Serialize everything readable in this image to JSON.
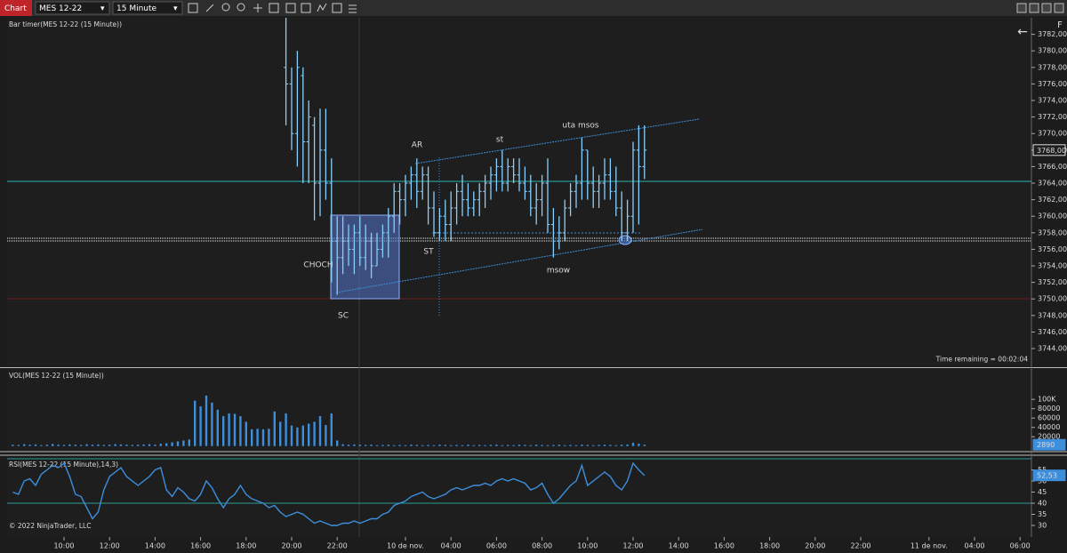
{
  "toolbar": {
    "title": "Chart",
    "instrument": "MES 12-22",
    "interval": "15 Minute",
    "flag": "F"
  },
  "chart_data": [
    {
      "type": "ohlc",
      "title": "Bar timer(MES 12-22 (15 Minute))",
      "time_remaining": "Time remaining = 00:02:04",
      "color": "#87cefa",
      "annotations": [
        "AR",
        "st",
        "uta msos",
        "ST",
        "msow",
        "CHOCH",
        "SC"
      ],
      "x": [
        49,
        50,
        51,
        52,
        53,
        54,
        55,
        56,
        57,
        58,
        59,
        60,
        61,
        62,
        63,
        64,
        65,
        66,
        67,
        68,
        69,
        70,
        71,
        72,
        73,
        74,
        75,
        76,
        77,
        78,
        79,
        80,
        81,
        82,
        83,
        84,
        85,
        86,
        87,
        88,
        89,
        90,
        91,
        92,
        93,
        94,
        95,
        96,
        97,
        98,
        99,
        100,
        101,
        102,
        103,
        104,
        105,
        106,
        107,
        108,
        109,
        110,
        111,
        112
      ],
      "open": [
        3778,
        3776,
        3770,
        3777,
        3769,
        3771,
        3764,
        3768,
        3764,
        3757,
        3755,
        3757,
        3756,
        3758,
        3755,
        3757,
        3754,
        3756,
        3758,
        3760,
        3763,
        3762,
        3764,
        3765,
        3763,
        3765,
        3761,
        3758,
        3760,
        3759,
        3761,
        3763,
        3762,
        3761,
        3762,
        3763,
        3764,
        3765,
        3766,
        3764,
        3766,
        3765,
        3764,
        3763,
        3761,
        3762,
        3764,
        3759,
        3757,
        3758,
        3761,
        3763,
        3764,
        3768,
        3764,
        3763,
        3764,
        3765,
        3763,
        3761,
        3758,
        3760,
        3768,
        3766
      ],
      "high": [
        3784,
        3778,
        3780,
        3778,
        3774,
        3772,
        3773,
        3773,
        3767,
        3760,
        3760,
        3759,
        3759,
        3760,
        3759,
        3758,
        3758,
        3759,
        3761,
        3764,
        3764,
        3765,
        3766,
        3767,
        3766,
        3766,
        3763,
        3761,
        3762,
        3763,
        3764,
        3765,
        3764,
        3763,
        3764,
        3765,
        3766,
        3767,
        3768,
        3767,
        3767,
        3767,
        3766,
        3765,
        3764,
        3765,
        3767,
        3761,
        3760,
        3762,
        3764,
        3765,
        3769.5,
        3768,
        3766,
        3765,
        3767,
        3767,
        3766,
        3763,
        3762,
        3769,
        3771,
        3771
      ],
      "low": [
        3771,
        3768,
        3766,
        3764,
        3764,
        3759.5,
        3760,
        3762,
        3752,
        3750.5,
        3753,
        3754,
        3753,
        3754,
        3753.5,
        3752.5,
        3754,
        3755,
        3755,
        3758,
        3759,
        3760,
        3762,
        3761,
        3762,
        3759,
        3757.5,
        3757,
        3757,
        3757,
        3759,
        3760,
        3760,
        3760,
        3760,
        3761,
        3762,
        3763,
        3763,
        3763,
        3764,
        3763,
        3762,
        3760,
        3759,
        3760,
        3758,
        3755,
        3756,
        3757,
        3760,
        3761,
        3762,
        3762,
        3761,
        3761,
        3762,
        3762,
        3760,
        3757,
        3757,
        3758,
        3759,
        3764.5
      ],
      "close": [
        3776,
        3770,
        3778,
        3769,
        3772,
        3764,
        3768,
        3764,
        3757,
        3755,
        3757,
        3756,
        3758,
        3755,
        3757,
        3754,
        3756,
        3758,
        3760,
        3763,
        3762,
        3764,
        3765,
        3763,
        3765,
        3761,
        3758,
        3760,
        3759,
        3761,
        3763,
        3762,
        3761,
        3762,
        3763,
        3764,
        3765,
        3766,
        3764,
        3766,
        3765,
        3764,
        3763,
        3761,
        3762,
        3764,
        3759,
        3757,
        3758,
        3761,
        3763,
        3764,
        3768,
        3764,
        3763,
        3764,
        3765,
        3763,
        3761,
        3758,
        3760,
        3768,
        3766,
        3768
      ],
      "last": {
        "value": 3768,
        "label": "3768,00"
      },
      "xlim": [
        0,
        180
      ],
      "ylim": [
        3741.8,
        3784
      ],
      "yticks": [
        {
          "value": 3744,
          "label": "3744,00"
        },
        {
          "value": 3746,
          "label": "3746,00"
        },
        {
          "value": 3748,
          "label": "3748,00"
        },
        {
          "value": 3750,
          "label": "3750,00"
        },
        {
          "value": 3752,
          "label": "3752,00"
        },
        {
          "value": 3754,
          "label": "3754,00"
        },
        {
          "value": 3756,
          "label": "3756,00"
        },
        {
          "value": 3758,
          "label": "3758,00"
        },
        {
          "value": 3760,
          "label": "3760,00"
        },
        {
          "value": 3762,
          "label": "3762,00"
        },
        {
          "value": 3764,
          "label": "3764,00"
        },
        {
          "value": 3766,
          "label": "3766,00"
        },
        {
          "value": 3768,
          "label": "3768,00"
        },
        {
          "value": 3770,
          "label": "3770,00"
        },
        {
          "value": 3772,
          "label": "3772,00"
        },
        {
          "value": 3774,
          "label": "3774,00"
        },
        {
          "value": 3776,
          "label": "3776,00"
        },
        {
          "value": 3778,
          "label": "3778,00"
        },
        {
          "value": 3780,
          "label": "3780,00"
        },
        {
          "value": 3782,
          "label": "3782,00"
        }
      ]
    },
    {
      "type": "bar",
      "title": "VOL(MES 12-22 (15 Minute))",
      "color": "#3d8fdc",
      "x": [
        1,
        2,
        3,
        4,
        5,
        6,
        7,
        8,
        9,
        10,
        11,
        12,
        13,
        14,
        15,
        16,
        17,
        18,
        19,
        20,
        21,
        22,
        23,
        24,
        25,
        26,
        27,
        28,
        29,
        30,
        31,
        32,
        33,
        34,
        35,
        36,
        37,
        38,
        39,
        40,
        41,
        42,
        43,
        44,
        45,
        46,
        47,
        48,
        49,
        50,
        51,
        52,
        53,
        54,
        55,
        56,
        57,
        58,
        59,
        60,
        61,
        62,
        63,
        64,
        65,
        66,
        67,
        68,
        69,
        70,
        71,
        72,
        73,
        74,
        75,
        76,
        77,
        78,
        79,
        80,
        81,
        82,
        83,
        84,
        85,
        86,
        87,
        88,
        89,
        90,
        91,
        92,
        93,
        94,
        95,
        96,
        97,
        98,
        99,
        100,
        101,
        102,
        103,
        104,
        105,
        106,
        107,
        108,
        109,
        110,
        111,
        112
      ],
      "values": [
        3000,
        2500,
        4000,
        3000,
        3500,
        2000,
        3000,
        4500,
        3000,
        2500,
        3500,
        3000,
        2500,
        4000,
        3000,
        3500,
        2500,
        3000,
        4000,
        3500,
        3000,
        2500,
        3000,
        3500,
        4000,
        3000,
        5000,
        6000,
        8000,
        10000,
        12000,
        14000,
        97000,
        85000,
        108000,
        93000,
        78000,
        64000,
        70000,
        69000,
        64000,
        52000,
        36000,
        37000,
        36000,
        37000,
        74000,
        52000,
        70000,
        44000,
        40000,
        44000,
        48000,
        52000,
        64000,
        45000,
        70000,
        12000,
        4000,
        3000,
        3500,
        3000,
        2500,
        3000,
        2000,
        2500,
        3000,
        2000,
        2500,
        2000,
        3000,
        2500,
        2000,
        2500,
        2000,
        3000,
        2500,
        2000,
        2500,
        2000,
        3000,
        2000,
        2500,
        2000,
        2500,
        3000,
        2000,
        2500,
        2000,
        3000,
        2500,
        2000,
        3000,
        2500,
        2000,
        2500,
        3000,
        2000,
        2500,
        2000,
        3000,
        2500,
        2000,
        2500,
        3000,
        2500,
        2000,
        3000,
        3500,
        7000,
        5000,
        2890
      ],
      "last": 2890,
      "xlim": [
        0,
        180
      ],
      "ylim": [
        -10000,
        165000
      ],
      "yticks": [
        20000,
        40000,
        60000,
        80000,
        {
          "value": 100000,
          "label": "100K"
        }
      ]
    },
    {
      "type": "line",
      "title": "RSI(MES 12-22 (15 Minute),14,3)",
      "copyright": "© 2022 NinjaTrader, LLC",
      "color": "#3d8fdc",
      "hline_color": "#2a9d96",
      "x": [
        1,
        2,
        3,
        4,
        5,
        6,
        7,
        8,
        9,
        10,
        11,
        12,
        13,
        14,
        15,
        16,
        17,
        18,
        19,
        20,
        21,
        22,
        23,
        24,
        25,
        26,
        27,
        28,
        29,
        30,
        31,
        32,
        33,
        34,
        35,
        36,
        37,
        38,
        39,
        40,
        41,
        42,
        43,
        44,
        45,
        46,
        47,
        48,
        49,
        50,
        51,
        52,
        53,
        54,
        55,
        56,
        57,
        58,
        59,
        60,
        61,
        62,
        63,
        64,
        65,
        66,
        67,
        68,
        69,
        70,
        71,
        72,
        73,
        74,
        75,
        76,
        77,
        78,
        79,
        80,
        81,
        82,
        83,
        84,
        85,
        86,
        87,
        88,
        89,
        90,
        91,
        92,
        93,
        94,
        95,
        96,
        97,
        98,
        99,
        100,
        101,
        102,
        103,
        104,
        105,
        106,
        107,
        108,
        109,
        110,
        111,
        112
      ],
      "values": [
        45,
        44,
        50,
        51,
        48,
        53,
        55,
        57,
        56,
        58,
        52,
        44,
        43,
        38,
        33,
        36,
        46,
        52,
        54,
        56,
        52,
        50,
        48,
        50,
        52,
        55,
        56,
        46,
        43,
        47,
        45,
        42,
        41,
        44,
        50,
        47,
        42,
        38,
        42,
        44,
        48,
        44,
        42,
        41,
        40,
        38,
        39,
        36,
        34,
        35,
        36,
        35,
        33,
        31,
        32,
        31,
        30,
        30,
        31,
        31,
        32,
        31,
        32,
        33,
        33,
        35,
        36,
        39,
        40,
        41,
        43,
        44,
        45,
        43,
        42,
        43,
        44,
        46,
        47,
        46,
        47,
        48,
        48,
        49,
        48,
        50,
        51,
        50,
        51,
        50,
        49,
        46,
        47,
        49,
        44,
        40,
        42,
        45,
        48,
        50,
        57,
        48,
        50,
        52,
        54,
        52,
        48,
        46,
        50,
        58,
        55,
        52.53
      ],
      "last": {
        "value": 52.53,
        "label": "52,53"
      },
      "hlines": [
        40,
        60
      ],
      "xlim": [
        0,
        180
      ],
      "ylim": [
        24.8,
        60.4
      ],
      "yticks": [
        30,
        35,
        40,
        45,
        50,
        55
      ],
      "xticks": [
        {
          "value": 10,
          "label": "10:00"
        },
        {
          "value": 18,
          "label": "12:00"
        },
        {
          "value": 26,
          "label": "14:00"
        },
        {
          "value": 34,
          "label": "16:00"
        },
        {
          "value": 42,
          "label": "18:00"
        },
        {
          "value": 50,
          "label": "20:00"
        },
        {
          "value": 58,
          "label": "22:00"
        },
        {
          "value": 70,
          "label": "10 de nov."
        },
        {
          "value": 78,
          "label": "04:00"
        },
        {
          "value": 86,
          "label": "06:00"
        },
        {
          "value": 94,
          "label": "08:00"
        },
        {
          "value": 102,
          "label": "10:00"
        },
        {
          "value": 110,
          "label": "12:00"
        },
        {
          "value": 118,
          "label": "14:00"
        },
        {
          "value": 126,
          "label": "16:00"
        },
        {
          "value": 134,
          "label": "18:00"
        },
        {
          "value": 142,
          "label": "20:00"
        },
        {
          "value": 150,
          "label": "22:00"
        },
        {
          "value": 162,
          "label": "11 de nov."
        },
        {
          "value": 170,
          "label": "04:00"
        },
        {
          "value": 178,
          "label": "06:00"
        }
      ]
    }
  ]
}
